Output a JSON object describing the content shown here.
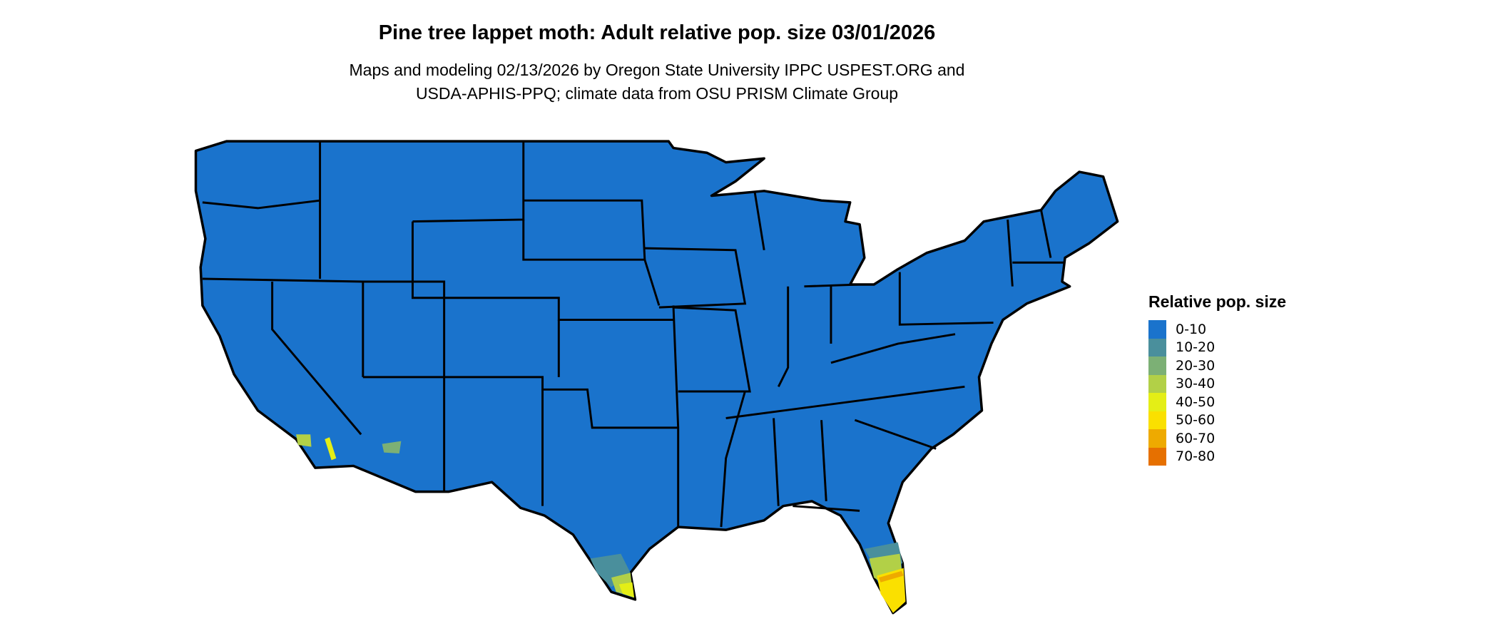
{
  "title": "Pine tree lappet moth: Adult relative pop. size 03/01/2026",
  "subtitle": [
    "Maps and modeling 02/13/2026 by Oregon State University IPPC USPEST.ORG and",
    "USDA-APHIS-PPQ; climate data from OSU PRISM Climate Group"
  ],
  "legend": {
    "title": "Relative pop. size",
    "items": [
      {
        "label": "0-10",
        "color": "#1a73cc"
      },
      {
        "label": "10-20",
        "color": "#4a8f9c"
      },
      {
        "label": "20-30",
        "color": "#7cb075"
      },
      {
        "label": "30-40",
        "color": "#b2d047"
      },
      {
        "label": "40-50",
        "color": "#e4ee16"
      },
      {
        "label": "50-60",
        "color": "#fae000"
      },
      {
        "label": "60-70",
        "color": "#eeaa00"
      },
      {
        "label": "70-80",
        "color": "#e67000"
      }
    ]
  },
  "map": {
    "region": "Contiguous United States",
    "base_color": "#1a73cc",
    "border_color": "#000000"
  }
}
